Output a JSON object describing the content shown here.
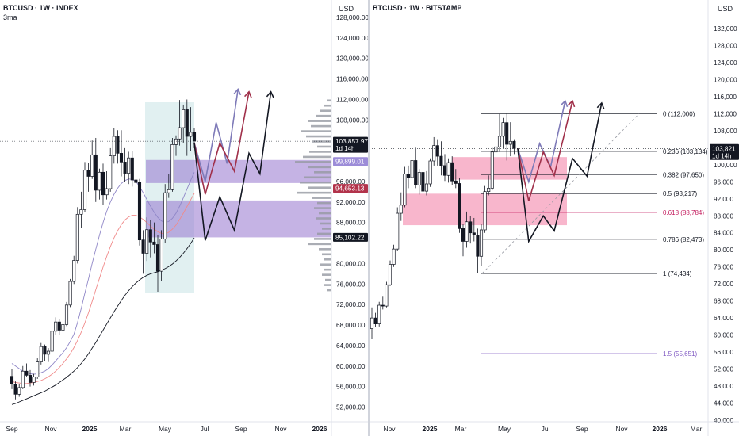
{
  "chart_data": [
    {
      "type": "candlestick",
      "title": "BTCUSD · 1W · INDEX",
      "subtitle": "3ma",
      "currency": "USD",
      "y_ticks": [
        128000,
        124000,
        120000,
        116000,
        112000,
        108000,
        100000,
        96000,
        92000,
        88000,
        80000,
        76000,
        72000,
        68000,
        64000,
        60000,
        56000,
        52000
      ],
      "y_tick_labels": [
        "128,000.00",
        "124,000.00",
        "120,000.00",
        "116,000.00",
        "112,000.00",
        "108,000.00",
        "100,000.00",
        "96,000.00",
        "92,000.00",
        "88,000.00",
        "80,000.00",
        "76,000.00",
        "72,000.00",
        "68,000.00",
        "64,000.00",
        "60,000.00",
        "56,000.00",
        "52,000.00"
      ],
      "ylim": [
        48500,
        132000
      ],
      "x_labels": [
        "Sep",
        "Nov",
        "2025",
        "Mar",
        "May",
        "Jul",
        "Sep",
        "Nov",
        "2026"
      ],
      "price_tags": [
        {
          "value": 103857.97,
          "label": "103,857.97",
          "sub": "1d 14h",
          "color": "#131722"
        },
        {
          "value": 99899.01,
          "label": "99,899.01",
          "color": "#9c8cd8"
        },
        {
          "value": 94653.13,
          "label": "94,653.13",
          "color": "#b2334b"
        },
        {
          "value": 85102.22,
          "label": "85,102.22",
          "color": "#131722"
        }
      ],
      "current_price": 103857.97,
      "zones": [
        {
          "from": 95700,
          "to": 100200,
          "color": "#9575cd"
        },
        {
          "from": 85100,
          "to": 92300,
          "color": "#9575cd"
        }
      ],
      "ohlc": [
        [
          58000,
          59500,
          55500,
          56500
        ],
        [
          56500,
          57000,
          53500,
          54500
        ],
        [
          54500,
          56500,
          54000,
          55800
        ],
        [
          55800,
          60000,
          55500,
          59000
        ],
        [
          59000,
          60500,
          57800,
          58200
        ],
        [
          58200,
          59200,
          56000,
          56800
        ],
        [
          56800,
          58500,
          56200,
          57900
        ],
        [
          57900,
          61500,
          57500,
          60800
        ],
        [
          60800,
          64500,
          60300,
          63800
        ],
        [
          63800,
          64200,
          61000,
          62300
        ],
        [
          62300,
          63500,
          60800,
          62900
        ],
        [
          62900,
          67500,
          62400,
          66800
        ],
        [
          66800,
          69500,
          66000,
          68600
        ],
        [
          68600,
          69200,
          66000,
          67000
        ],
        [
          67000,
          68500,
          66500,
          68100
        ],
        [
          68100,
          72500,
          67800,
          71900
        ],
        [
          71900,
          77000,
          71500,
          76500
        ],
        [
          76500,
          81500,
          76000,
          80600
        ],
        [
          80600,
          91000,
          80000,
          89600
        ],
        [
          89600,
          94000,
          87000,
          90500
        ],
        [
          90500,
          99800,
          90000,
          98200
        ],
        [
          98200,
          99600,
          94000,
          97000
        ],
        [
          97000,
          104000,
          96500,
          101200
        ],
        [
          101200,
          104500,
          92000,
          94300
        ],
        [
          94300,
          98500,
          92500,
          97800
        ],
        [
          97800,
          99500,
          91500,
          93400
        ],
        [
          93400,
          98000,
          92500,
          94600
        ],
        [
          94600,
          102500,
          94000,
          101000
        ],
        [
          101000,
          106500,
          99500,
          104800
        ],
        [
          104800,
          106000,
          99500,
          101500
        ],
        [
          101500,
          106000,
          97000,
          99800
        ],
        [
          99800,
          102500,
          96000,
          97600
        ],
        [
          97600,
          101800,
          95500,
          100600
        ],
        [
          100600,
          102000,
          95000,
          96300
        ],
        [
          96300,
          99000,
          94000,
          95800
        ],
        [
          95800,
          96500,
          83500,
          84600
        ],
        [
          84600,
          86500,
          78000,
          82000
        ],
        [
          82000,
          89000,
          80500,
          86600
        ],
        [
          86600,
          88500,
          81200,
          84200
        ],
        [
          84200,
          88000,
          82000,
          83700
        ],
        [
          83700,
          85500,
          74500,
          78500
        ],
        [
          78500,
          86500,
          76500,
          84800
        ],
        [
          84800,
          95500,
          84000,
          93800
        ],
        [
          93800,
          97500,
          92800,
          94400
        ],
        [
          94400,
          104500,
          94000,
          103200
        ],
        [
          103200,
          105000,
          101000,
          104300
        ],
        [
          104300,
          111900,
          103000,
          106500
        ],
        [
          106500,
          111000,
          103500,
          110000
        ],
        [
          110000,
          112000,
          101000,
          104800
        ],
        [
          104800,
          110500,
          102000,
          105600
        ],
        [
          105600,
          106500,
          102500,
          103900
        ]
      ],
      "ma": [
        {
          "name": "ma1",
          "color": "#8f86c7",
          "values": [
            60500,
            60000,
            59500,
            59000,
            58800,
            58500,
            58400,
            58500,
            58700,
            59000,
            59500,
            60200,
            61000,
            61800,
            62600,
            63600,
            64800,
            66200,
            68500,
            71200,
            74200,
            77000,
            80000,
            82800,
            85500,
            88000,
            90200,
            92000,
            93500,
            94700,
            95600,
            96200,
            96500,
            96400,
            96000,
            95000,
            93800,
            92500,
            91200,
            90000,
            89000,
            88300,
            88000,
            88200,
            88800,
            89800,
            91200,
            92800,
            94500,
            96200,
            97800
          ]
        },
        {
          "name": "ma2",
          "color": "#f08a8a",
          "values": [
            57000,
            56800,
            56700,
            56600,
            56600,
            56700,
            56800,
            57000,
            57200,
            57500,
            57900,
            58400,
            59000,
            59700,
            60500,
            61400,
            62400,
            63600,
            65000,
            66600,
            68400,
            70400,
            72600,
            74900,
            77100,
            79300,
            81400,
            83300,
            85000,
            86400,
            87600,
            88500,
            89100,
            89400,
            89400,
            89100,
            88600,
            88000,
            87300,
            86700,
            86200,
            85900,
            85800,
            86100,
            86700,
            87500,
            88600,
            89800,
            91100,
            92400,
            93700
          ]
        },
        {
          "name": "ma3",
          "color": "#131722",
          "values": [
            52500,
            52700,
            53000,
            53300,
            53600,
            53900,
            54200,
            54500,
            54800,
            55100,
            55500,
            55900,
            56300,
            56800,
            57300,
            57800,
            58400,
            59000,
            59700,
            60500,
            61400,
            62400,
            63500,
            64600,
            65800,
            67000,
            68200,
            69400,
            70600,
            71700,
            72800,
            73800,
            74700,
            75500,
            76200,
            76800,
            77300,
            77700,
            78000,
            78200,
            78400,
            78700,
            79000,
            79400,
            79900,
            80500,
            81200,
            82000,
            82900,
            83900,
            85000
          ]
        }
      ],
      "projections": [
        {
          "color": "#7e7ab8",
          "points": [
            [
              50,
              103500
            ],
            [
              53,
              96000
            ],
            [
              56,
              107500
            ],
            [
              59,
              99500
            ],
            [
              62,
              114000
            ]
          ]
        },
        {
          "color": "#a0304a",
          "points": [
            [
              50,
              103500
            ],
            [
              53,
              93500
            ],
            [
              57,
              103500
            ],
            [
              61,
              98000
            ],
            [
              65,
              113500
            ]
          ]
        },
        {
          "color": "#131722",
          "points": [
            [
              50,
              103500
            ],
            [
              53,
              84500
            ],
            [
              57,
              93000
            ],
            [
              61,
              86500
            ],
            [
              65,
              101500
            ],
            [
              68,
              97500
            ],
            [
              71,
              113500
            ]
          ]
        }
      ]
    },
    {
      "type": "candlestick",
      "title": "BTCUSD · 1W · BITSTAMP",
      "currency": "USD",
      "y_ticks": [
        132000,
        128000,
        124000,
        120000,
        116000,
        112000,
        108000,
        100000,
        96000,
        92000,
        88000,
        84000,
        80000,
        76000,
        72000,
        68000,
        64000,
        60000,
        56000,
        52000,
        48000,
        44000,
        40000
      ],
      "y_tick_labels": [
        "132,000",
        "128,000",
        "124,000",
        "120,000",
        "116,000",
        "112,000",
        "108,000",
        "100,000",
        "96,000",
        "92,000",
        "88,000",
        "84,000",
        "80,000",
        "76,000",
        "72,000",
        "68,000",
        "64,000",
        "60,000",
        "56,000",
        "52,000",
        "48,000",
        "44,000",
        "40,000"
      ],
      "ylim": [
        38000,
        137000
      ],
      "x_labels": [
        "Nov",
        "2025",
        "Mar",
        "May",
        "Jul",
        "Sep",
        "Nov",
        "2026",
        "Mar"
      ],
      "price_tags": [
        {
          "value": 103821,
          "label": "103,821",
          "sub": "1d 14h",
          "color": "#131722"
        }
      ],
      "current_price": 103821,
      "zones": [
        {
          "from": 96500,
          "to": 101800,
          "color": "#f48fb1"
        },
        {
          "from": 85800,
          "to": 93200,
          "color": "#f48fb1"
        }
      ],
      "fib_levels": [
        {
          "label": "0 (112,000)",
          "value": 112000,
          "color": "#131722"
        },
        {
          "label": "0.236 (103,134)",
          "value": 103134,
          "color": "#131722"
        },
        {
          "label": "0.382 (97,650)",
          "value": 97650,
          "color": "#131722"
        },
        {
          "label": "0.5 (93,217)",
          "value": 93217,
          "color": "#131722"
        },
        {
          "label": "0.618 (88,784)",
          "value": 88784,
          "color": "#c2185b"
        },
        {
          "label": "0.786 (82,473)",
          "value": 82473,
          "color": "#131722"
        },
        {
          "label": "1 (74,434)",
          "value": 74434,
          "color": "#131722"
        },
        {
          "label": "1.5 (55,651)",
          "value": 55651,
          "color": "#7e57c2"
        }
      ],
      "ohlc": [
        [
          61500,
          66500,
          59000,
          64000
        ],
        [
          64000,
          65200,
          61800,
          62600
        ],
        [
          62600,
          67800,
          62000,
          67000
        ],
        [
          67000,
          69000,
          66000,
          66800
        ],
        [
          66800,
          72500,
          66500,
          71800
        ],
        [
          71800,
          77500,
          71500,
          76600
        ],
        [
          76600,
          81200,
          76000,
          80200
        ],
        [
          80200,
          90000,
          79800,
          88600
        ],
        [
          88600,
          93500,
          86800,
          90500
        ],
        [
          90500,
          99500,
          90000,
          97800
        ],
        [
          97800,
          99800,
          94500,
          97000
        ],
        [
          97000,
          103800,
          96500,
          101000
        ],
        [
          101000,
          104000,
          94500,
          95200
        ],
        [
          95200,
          99000,
          93000,
          98200
        ],
        [
          98200,
          100000,
          92000,
          93800
        ],
        [
          93800,
          98500,
          92800,
          95500
        ],
        [
          95500,
          101500,
          94800,
          100900
        ],
        [
          100900,
          106500,
          99800,
          104500
        ],
        [
          104500,
          106000,
          99800,
          102000
        ],
        [
          102000,
          105500,
          97500,
          99800
        ],
        [
          99800,
          102500,
          96200,
          97500
        ],
        [
          97500,
          101500,
          95800,
          100500
        ],
        [
          100500,
          102000,
          95200,
          96200
        ],
        [
          96200,
          99000,
          94500,
          95600
        ],
        [
          95600,
          96800,
          84000,
          85000
        ],
        [
          85000,
          86000,
          78500,
          82000
        ],
        [
          82000,
          89000,
          80500,
          86600
        ],
        [
          86600,
          88000,
          81500,
          84000
        ],
        [
          84000,
          87500,
          82000,
          83500
        ],
        [
          83500,
          85000,
          74500,
          78500
        ],
        [
          78500,
          86000,
          76200,
          84700
        ],
        [
          84700,
          95000,
          84000,
          93700
        ],
        [
          93700,
          97500,
          92800,
          94500
        ],
        [
          94500,
          104000,
          94000,
          103000
        ],
        [
          103000,
          105000,
          101000,
          104200
        ],
        [
          104200,
          111900,
          103000,
          106700
        ],
        [
          106700,
          111000,
          103800,
          109900
        ],
        [
          109900,
          112000,
          101000,
          104800
        ],
        [
          104800,
          110000,
          102000,
          105500
        ],
        [
          105500,
          106000,
          102500,
          103821
        ]
      ],
      "projections": [
        {
          "color": "#7e7ab8",
          "points": [
            [
              40,
              103800
            ],
            [
              43,
              96000
            ],
            [
              46,
              105000
            ],
            [
              49,
              99500
            ],
            [
              53,
              115000
            ]
          ]
        },
        {
          "color": "#a0304a",
          "points": [
            [
              40,
              103800
            ],
            [
              43,
              91500
            ],
            [
              47,
              103000
            ],
            [
              50,
              97500
            ],
            [
              55,
              115000
            ]
          ]
        },
        {
          "color": "#131722",
          "points": [
            [
              40,
              103800
            ],
            [
              43,
              82000
            ],
            [
              47,
              88000
            ],
            [
              50,
              84500
            ],
            [
              55,
              101500
            ],
            [
              59,
              97300
            ],
            [
              63,
              114500
            ]
          ]
        }
      ]
    }
  ]
}
